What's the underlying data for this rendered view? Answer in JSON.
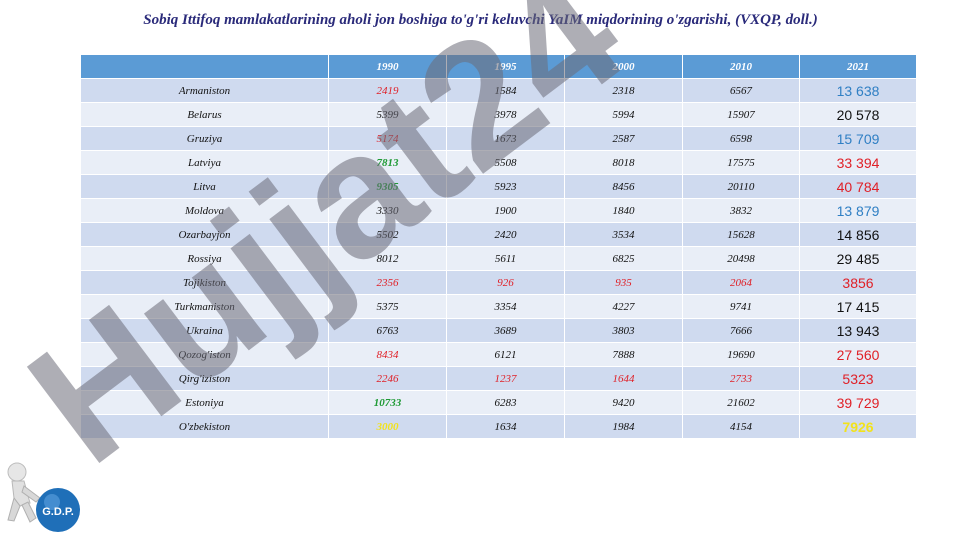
{
  "title": "Sobiq Ittifoq mamlakatlarining aholi jon boshiga to'g'ri keluvchi YaIM miqdorining o'zgarishi, (VXQP, doll.)",
  "table": {
    "headers": [
      "",
      "1990",
      "1995",
      "2000",
      "2010",
      "2021"
    ],
    "rows": [
      {
        "country": "Armaniston",
        "values": [
          "2419",
          "1584",
          "2318",
          "6567",
          "13 638"
        ],
        "colors": [
          "red",
          "",
          "",
          "",
          "blue"
        ]
      },
      {
        "country": "Belarus",
        "values": [
          "5399",
          "3978",
          "5994",
          "15907",
          "20 578"
        ],
        "colors": [
          "",
          "",
          "",
          "",
          "black"
        ]
      },
      {
        "country": "Gruziya",
        "values": [
          "5174",
          "1673",
          "2587",
          "6598",
          "15 709"
        ],
        "colors": [
          "red",
          "",
          "",
          "",
          "blue"
        ]
      },
      {
        "country": "Latviya",
        "values": [
          "7813",
          "5508",
          "8018",
          "17575",
          "33 394"
        ],
        "colors": [
          "green",
          "",
          "",
          "",
          "red"
        ]
      },
      {
        "country": "Litva",
        "values": [
          "9305",
          "5923",
          "8456",
          "20110",
          "40 784"
        ],
        "colors": [
          "green",
          "",
          "",
          "",
          "red"
        ]
      },
      {
        "country": "Moldova",
        "values": [
          "3330",
          "1900",
          "1840",
          "3832",
          "13 879"
        ],
        "colors": [
          "",
          "",
          "",
          "",
          "blue"
        ]
      },
      {
        "country": "Ozarbayjon",
        "values": [
          "5502",
          "2420",
          "3534",
          "15628",
          "14 856"
        ],
        "colors": [
          "",
          "",
          "",
          "",
          "black"
        ]
      },
      {
        "country": "Rossiya",
        "values": [
          "8012",
          "5611",
          "6825",
          "20498",
          "29 485"
        ],
        "colors": [
          "",
          "",
          "",
          "",
          "black"
        ]
      },
      {
        "country": "Tojikiston",
        "values": [
          "2356",
          "926",
          "935",
          "2064",
          "3856"
        ],
        "colors": [
          "red",
          "red",
          "red",
          "red",
          "red"
        ]
      },
      {
        "country": "Turkmaniston",
        "values": [
          "5375",
          "3354",
          "4227",
          "9741",
          "17 415"
        ],
        "colors": [
          "",
          "",
          "",
          "",
          "black"
        ]
      },
      {
        "country": "Ukraina",
        "values": [
          "6763",
          "3689",
          "3803",
          "7666",
          "13 943"
        ],
        "colors": [
          "",
          "",
          "",
          "",
          "black"
        ]
      },
      {
        "country": "Qozog'iston",
        "values": [
          "8434",
          "6121",
          "7888",
          "19690",
          "27 560"
        ],
        "colors": [
          "red",
          "",
          "",
          "",
          "red"
        ]
      },
      {
        "country": "Qirg'iziston",
        "values": [
          "2246",
          "1237",
          "1644",
          "2733",
          "5323"
        ],
        "colors": [
          "red",
          "red",
          "red",
          "red",
          "red"
        ]
      },
      {
        "country": "Estoniya",
        "values": [
          "10733",
          "6283",
          "9420",
          "21602",
          "39 729"
        ],
        "colors": [
          "green",
          "",
          "",
          "",
          "red"
        ]
      },
      {
        "country": "O'zbekiston",
        "values": [
          "3000",
          "1634",
          "1984",
          "4154",
          "7926"
        ],
        "colors": [
          "yellow",
          "",
          "",
          "",
          "yellow"
        ]
      }
    ]
  },
  "watermark": {
    "text": "Hujjat24",
    "color": "#6b6b78"
  },
  "logo": {
    "text": "G.D.P.",
    "color": "#1f6fb8"
  }
}
